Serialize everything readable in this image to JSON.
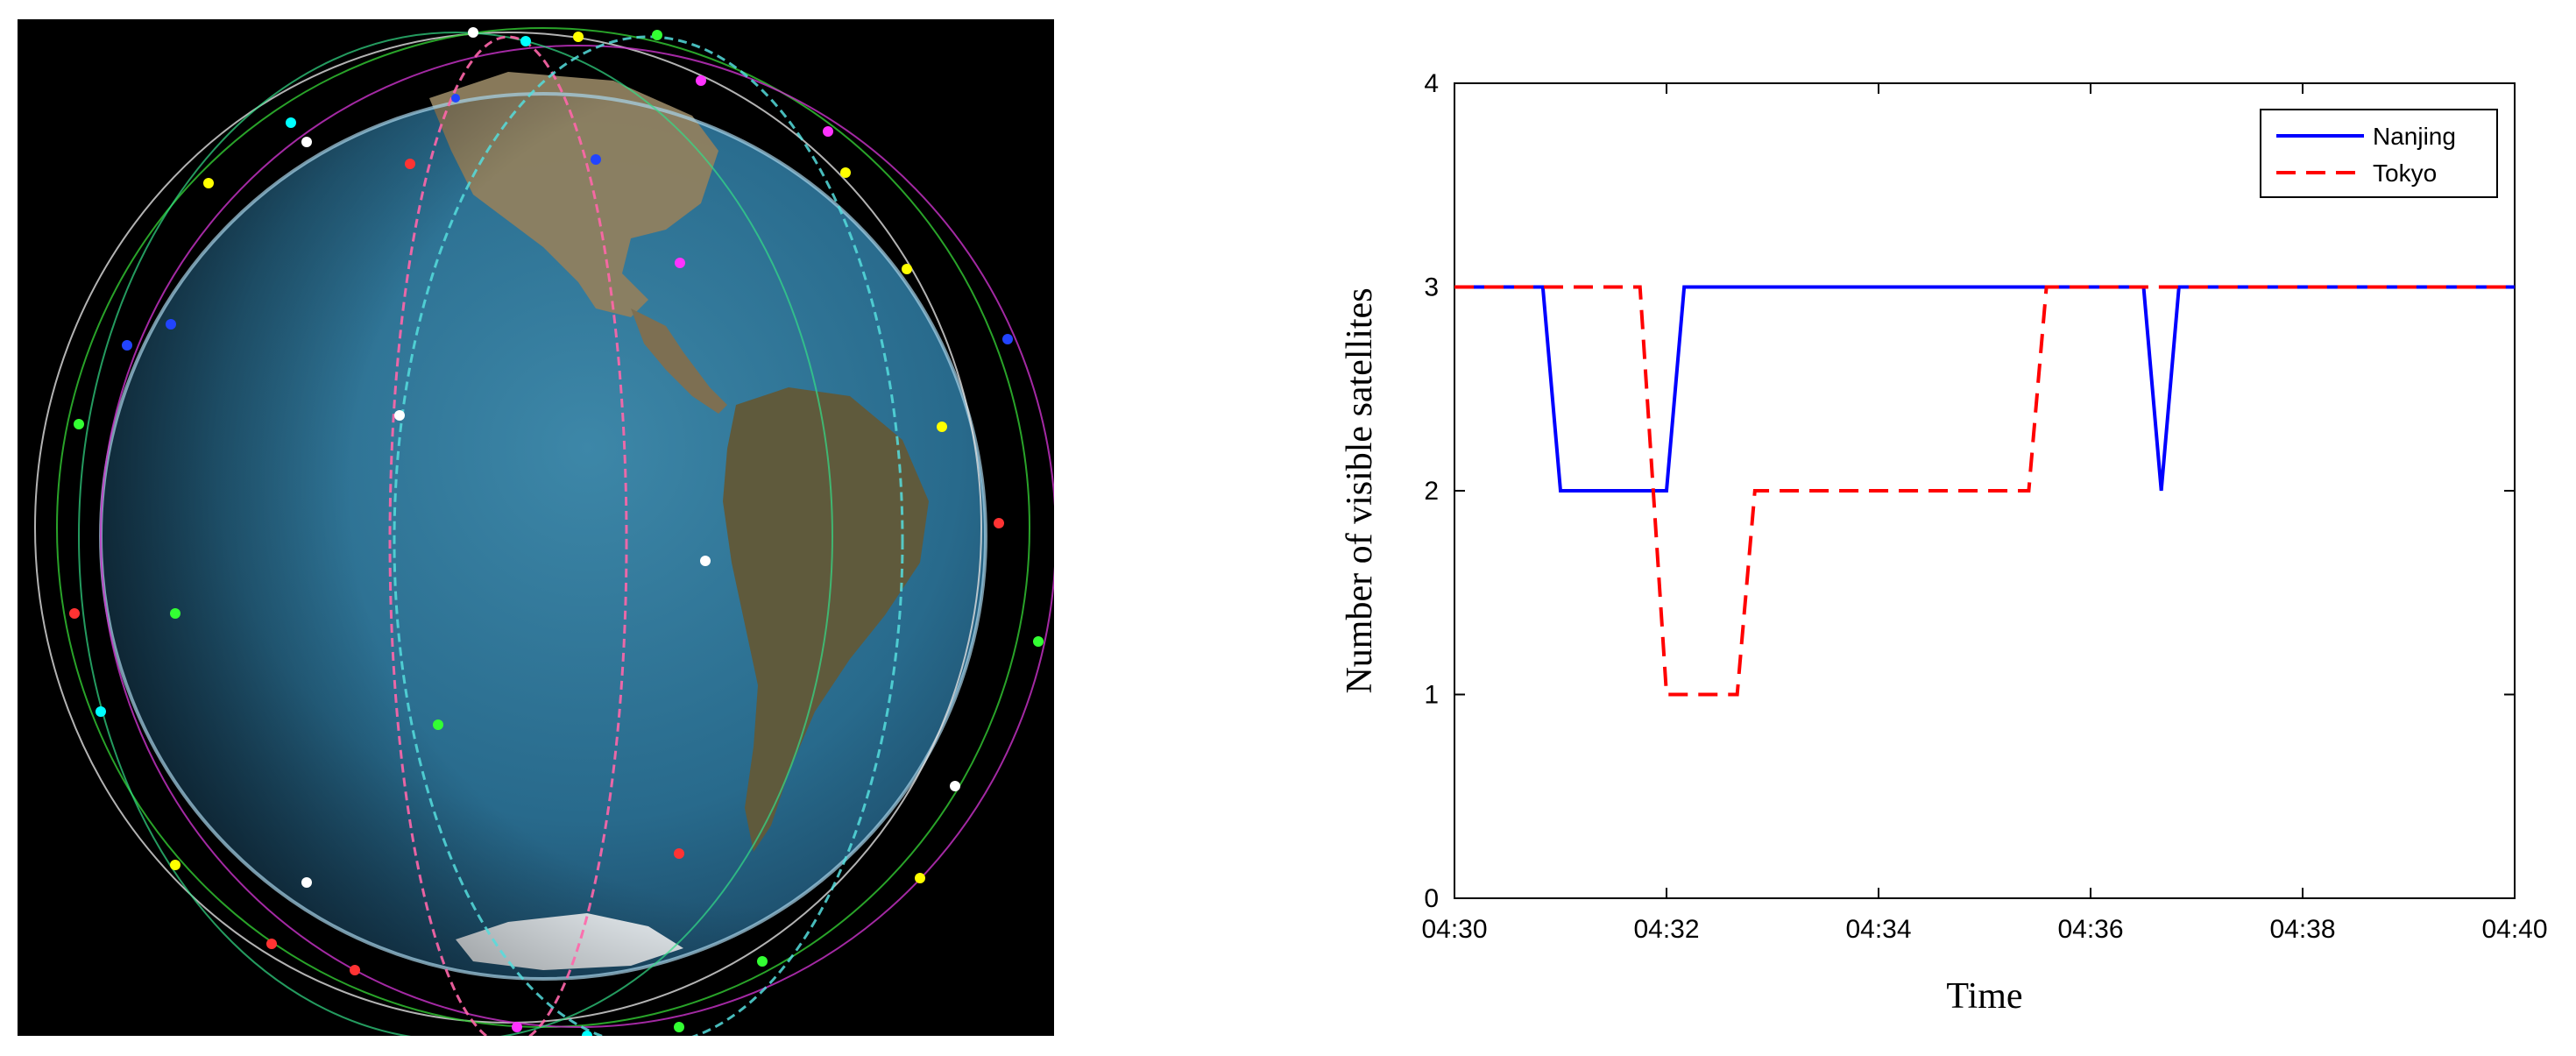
{
  "colors": {
    "nanjing": "#0000ff",
    "tokyo": "#ff0000",
    "ocean": "#2a6f93",
    "globe_background": "#000000"
  },
  "chart_data": {
    "type": "line",
    "xlabel": "Time",
    "ylabel": "Number of visible satellites",
    "xticks": [
      "04:30",
      "04:32",
      "04:34",
      "04:36",
      "04:38",
      "04:40"
    ],
    "xlim_minutes": [
      0,
      10
    ],
    "ylim": [
      0,
      4
    ],
    "yticks": [
      0,
      1,
      2,
      3,
      4
    ],
    "legend_position": "top-right",
    "grid": false,
    "series": [
      {
        "name": "Nanjing",
        "color": "#0000ff",
        "style": "solid",
        "x": [
          "04:30",
          "04:30:50",
          "04:31",
          "04:32",
          "04:32:10",
          "04:36:30",
          "04:36:40",
          "04:36:50",
          "04:40"
        ],
        "y": [
          3,
          3,
          2,
          2,
          3,
          3,
          2,
          3,
          3
        ]
      },
      {
        "name": "Tokyo",
        "color": "#ff0000",
        "style": "dashed",
        "x": [
          "04:30",
          "04:31:45",
          "04:32",
          "04:32:40",
          "04:32:50",
          "04:35:25",
          "04:35:35",
          "04:40"
        ],
        "y": [
          3,
          3,
          1,
          1,
          2,
          2,
          3,
          3
        ]
      }
    ]
  },
  "globe": {
    "icon": "earth-with-satellite-orbits-icon"
  }
}
